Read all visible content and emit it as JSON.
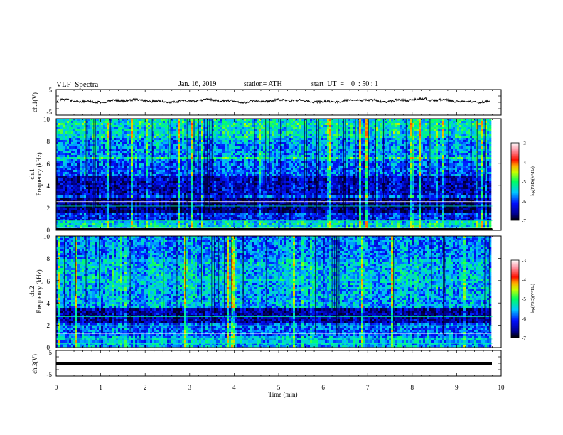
{
  "header": {
    "title": "VLF  Spectra",
    "date": "Jan. 16, 2019",
    "station": "station= ATH",
    "start": "start  UT  =    0  : 50 : 1"
  },
  "chart_data": [
    {
      "type": "line",
      "panel": "ch1-waveform",
      "ylabel": "ch.1(V)",
      "ylim": [
        -5,
        5
      ],
      "yticks": [
        "5",
        "-5"
      ],
      "xlim": [
        0,
        10
      ]
    },
    {
      "type": "heatmap",
      "panel": "ch1-spectrogram",
      "ylabel_channel": "ch.1",
      "ylabel": "Frequency  (kHz)",
      "ylim": [
        0,
        10
      ],
      "yticks": [
        "10",
        "8",
        "6",
        "4",
        "2",
        "0"
      ],
      "xlim": [
        0,
        9.8
      ],
      "colorbar": {
        "label": "log(PSD)(V²/Hz)",
        "range": [
          -7,
          -3
        ],
        "ticks": [
          "-3",
          "-4",
          "-5",
          "-6",
          "-7"
        ]
      }
    },
    {
      "type": "heatmap",
      "panel": "ch2-spectrogram",
      "ylabel_channel": "ch.2",
      "ylabel": "Frequency  (kHz)",
      "ylim": [
        0,
        10
      ],
      "yticks": [
        "10",
        "8",
        "6",
        "4",
        "2",
        "0"
      ],
      "xlim": [
        0,
        9.8
      ],
      "colorbar": {
        "label": "log(PSD)(V²/Hz)",
        "range": [
          -7,
          -3
        ],
        "ticks": [
          "-3",
          "-4",
          "-5",
          "-6",
          "-7"
        ]
      }
    },
    {
      "type": "line",
      "panel": "ch3-waveform",
      "ylabel": "ch.3(V)",
      "ylim": [
        -5,
        5
      ],
      "yticks": [
        "5",
        "-5"
      ],
      "xlabel": "Time  (min)",
      "xlim": [
        0,
        10
      ],
      "xticks": [
        "0",
        "1",
        "2",
        "3",
        "4",
        "5",
        "6",
        "7",
        "8",
        "9",
        "10"
      ]
    }
  ]
}
